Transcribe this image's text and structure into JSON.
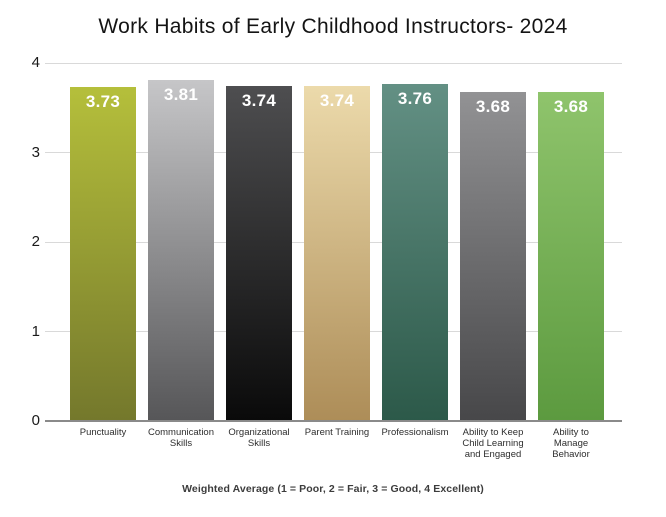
{
  "chart_data": {
    "type": "bar",
    "title": "Work Habits of Early Childhood Instructors- 2024",
    "categories": [
      "Punctuality",
      "Communication Skills",
      "Organizational Skills",
      "Parent Training",
      "Professionalism",
      "Ability to Keep Child Learning and Engaged",
      "Ability to Manage Behavior"
    ],
    "category_display": [
      "Punctuality",
      "Communication\nSkills",
      "Organizational\nSkills",
      "Parent Training",
      "Professionalism",
      "Ability to Keep\nChild Learning\nand Engaged",
      "Ability to\nManage\nBehavior"
    ],
    "values": [
      3.73,
      3.81,
      3.74,
      3.74,
      3.76,
      3.68,
      3.68
    ],
    "value_labels": [
      "3.73",
      "3.81",
      "3.74",
      "3.74",
      "3.76",
      "3.68",
      "3.68"
    ],
    "bar_gradients": [
      {
        "top": "#b5bf3b",
        "bottom": "#74782c"
      },
      {
        "top": "#c6c6c8",
        "bottom": "#565658"
      },
      {
        "top": "#4e4e50",
        "bottom": "#0a0a0a"
      },
      {
        "top": "#ecdaab",
        "bottom": "#ad8d58"
      },
      {
        "top": "#639084",
        "bottom": "#2c5949"
      },
      {
        "top": "#929294",
        "bottom": "#474749"
      },
      {
        "top": "#8fc46c",
        "bottom": "#5c9a3f"
      }
    ],
    "xlabel": "Weighted Average (1 = Poor, 2 = Fair, 3 = Good, 4 Excellent)",
    "ylabel": "",
    "yticks": [
      0,
      1,
      2,
      3,
      4
    ],
    "ylim": [
      0,
      4
    ],
    "grid": "horizontal",
    "legend": "none",
    "value_label_color": "#ffffff",
    "gridline_color": "#d9d9d9",
    "axis_line_color": "#8a8a8a",
    "background_color": "#ffffff"
  }
}
